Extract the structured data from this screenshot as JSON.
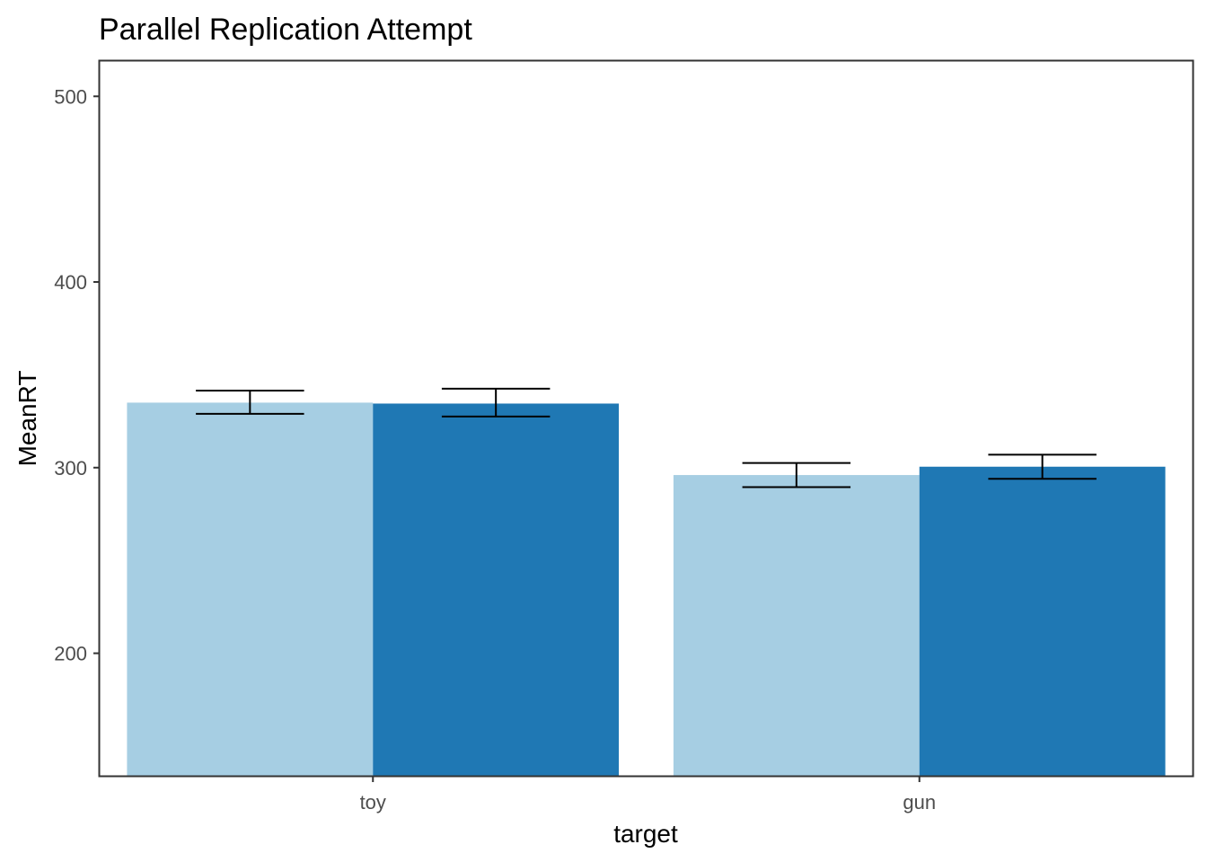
{
  "chart_data": {
    "type": "bar",
    "title": "Parallel Replication Attempt",
    "xlabel": "target",
    "ylabel": "MeanRT",
    "categories": [
      "toy",
      "gun"
    ],
    "series": [
      {
        "values": [
          335,
          296
        ],
        "error_low": [
          329,
          289.5
        ],
        "error_high": [
          341.5,
          302.5
        ]
      },
      {
        "values": [
          334.5,
          300.5
        ],
        "error_low": [
          327.5,
          294
        ],
        "error_high": [
          342.5,
          307
        ]
      }
    ],
    "ylim": [
      134,
      519
    ],
    "yticks": [
      200,
      300,
      400,
      500
    ],
    "grid": false,
    "legend": "none",
    "colors": {
      "series": [
        "#a6cee3",
        "#1f78b4"
      ],
      "panel_border": "#333333",
      "tick": "#333333",
      "error_bar": "#000000"
    }
  }
}
